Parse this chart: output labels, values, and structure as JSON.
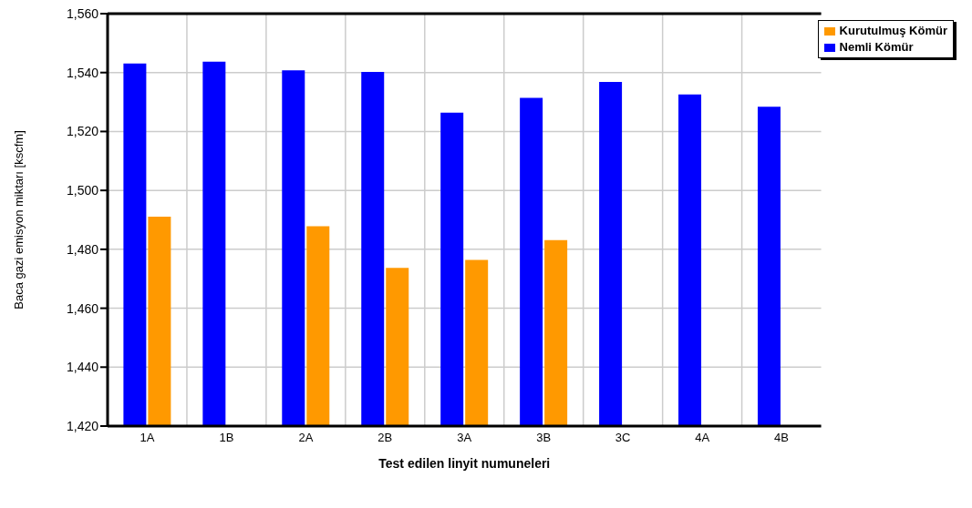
{
  "chart_data": {
    "type": "bar",
    "xlabel": "Test edilen linyit numuneleri",
    "ylabel": "Baca gazi emisyon miktarı [kscfm]",
    "categories": [
      "1A",
      "1B",
      "2A",
      "2B",
      "3A",
      "3B",
      "3C",
      "4A",
      "4B"
    ],
    "series": [
      {
        "name": "Nemli Kömür",
        "color": "#0000ff",
        "values": [
          1543.1,
          1543.7,
          1540.8,
          1540.2,
          1526.4,
          1531.4,
          1536.8,
          1532.6,
          1528.4
        ]
      },
      {
        "name": "Kurutulmuş Kömür",
        "color": "#ff9900",
        "values": [
          1491.1,
          null,
          1487.8,
          1473.7,
          1476.4,
          1483.1,
          null,
          null,
          null
        ]
      }
    ],
    "ylim": [
      1420,
      1560
    ],
    "yticks": [
      {
        "value": 1420,
        "label": "1,420"
      },
      {
        "value": 1440,
        "label": "1,440"
      },
      {
        "value": 1460,
        "label": "1,460"
      },
      {
        "value": 1480,
        "label": "1,480"
      },
      {
        "value": 1500,
        "label": "1,500"
      },
      {
        "value": 1520,
        "label": "1,520"
      },
      {
        "value": 1540,
        "label": "1,540"
      },
      {
        "value": 1560,
        "label": "1,560"
      }
    ],
    "grid": true,
    "legend": "top right"
  }
}
